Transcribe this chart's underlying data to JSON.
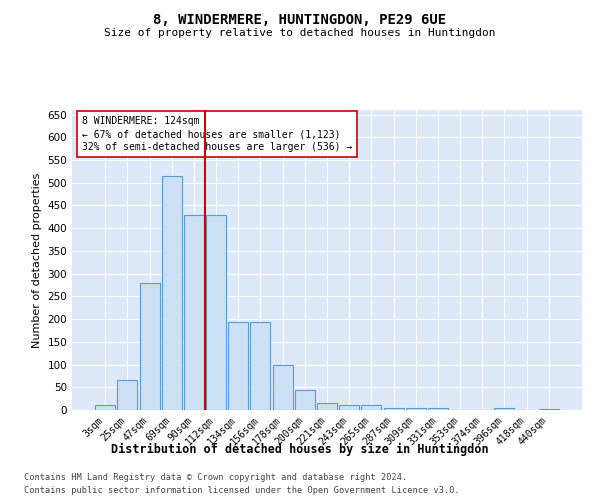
{
  "title1": "8, WINDERMERE, HUNTINGDON, PE29 6UE",
  "title2": "Size of property relative to detached houses in Huntingdon",
  "xlabel": "Distribution of detached houses by size in Huntingdon",
  "ylabel": "Number of detached properties",
  "footer1": "Contains HM Land Registry data © Crown copyright and database right 2024.",
  "footer2": "Contains public sector information licensed under the Open Government Licence v3.0.",
  "annotation_line1": "8 WINDERMERE: 124sqm",
  "annotation_line2": "← 67% of detached houses are smaller (1,123)",
  "annotation_line3": "32% of semi-detached houses are larger (536) →",
  "bar_labels": [
    "3sqm",
    "25sqm",
    "47sqm",
    "69sqm",
    "90sqm",
    "112sqm",
    "134sqm",
    "156sqm",
    "178sqm",
    "200sqm",
    "221sqm",
    "243sqm",
    "265sqm",
    "287sqm",
    "309sqm",
    "331sqm",
    "353sqm",
    "374sqm",
    "396sqm",
    "418sqm",
    "440sqm"
  ],
  "bar_values": [
    10,
    65,
    280,
    515,
    430,
    430,
    193,
    193,
    100,
    45,
    15,
    10,
    10,
    5,
    5,
    5,
    0,
    0,
    5,
    0,
    3
  ],
  "bar_color": "#cce0f5",
  "bar_edge_color": "#5b9bd5",
  "vline_x_idx": 4.5,
  "vline_color": "#cc0000",
  "annotation_box_color": "#ffffff",
  "annotation_box_edge": "#cc0000",
  "ylim": [
    0,
    660
  ],
  "yticks": [
    0,
    50,
    100,
    150,
    200,
    250,
    300,
    350,
    400,
    450,
    500,
    550,
    600,
    650
  ],
  "bg_color": "#dde8f8",
  "grid_color": "#ffffff"
}
